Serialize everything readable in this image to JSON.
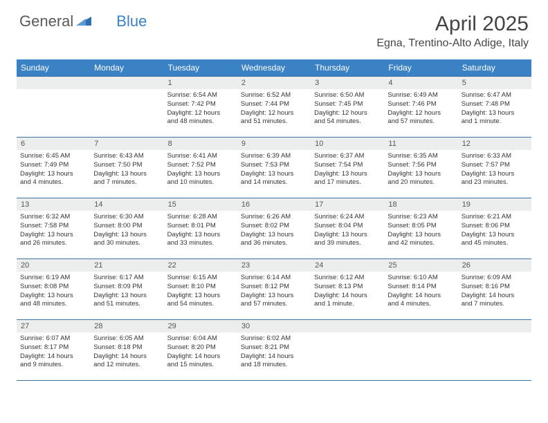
{
  "brand": {
    "name1": "General",
    "name2": "Blue"
  },
  "title": "April 2025",
  "location": "Egna, Trentino-Alto Adige, Italy",
  "colors": {
    "header_bg": "#3b82c4",
    "header_text": "#ffffff",
    "daynum_bg": "#eceded",
    "border": "#3b6fa0",
    "body_text": "#333333",
    "title_text": "#444444"
  },
  "day_headers": [
    "Sunday",
    "Monday",
    "Tuesday",
    "Wednesday",
    "Thursday",
    "Friday",
    "Saturday"
  ],
  "weeks": [
    [
      null,
      null,
      {
        "n": "1",
        "sr": "Sunrise: 6:54 AM",
        "ss": "Sunset: 7:42 PM",
        "d1": "Daylight: 12 hours",
        "d2": "and 48 minutes."
      },
      {
        "n": "2",
        "sr": "Sunrise: 6:52 AM",
        "ss": "Sunset: 7:44 PM",
        "d1": "Daylight: 12 hours",
        "d2": "and 51 minutes."
      },
      {
        "n": "3",
        "sr": "Sunrise: 6:50 AM",
        "ss": "Sunset: 7:45 PM",
        "d1": "Daylight: 12 hours",
        "d2": "and 54 minutes."
      },
      {
        "n": "4",
        "sr": "Sunrise: 6:49 AM",
        "ss": "Sunset: 7:46 PM",
        "d1": "Daylight: 12 hours",
        "d2": "and 57 minutes."
      },
      {
        "n": "5",
        "sr": "Sunrise: 6:47 AM",
        "ss": "Sunset: 7:48 PM",
        "d1": "Daylight: 13 hours",
        "d2": "and 1 minute."
      }
    ],
    [
      {
        "n": "6",
        "sr": "Sunrise: 6:45 AM",
        "ss": "Sunset: 7:49 PM",
        "d1": "Daylight: 13 hours",
        "d2": "and 4 minutes."
      },
      {
        "n": "7",
        "sr": "Sunrise: 6:43 AM",
        "ss": "Sunset: 7:50 PM",
        "d1": "Daylight: 13 hours",
        "d2": "and 7 minutes."
      },
      {
        "n": "8",
        "sr": "Sunrise: 6:41 AM",
        "ss": "Sunset: 7:52 PM",
        "d1": "Daylight: 13 hours",
        "d2": "and 10 minutes."
      },
      {
        "n": "9",
        "sr": "Sunrise: 6:39 AM",
        "ss": "Sunset: 7:53 PM",
        "d1": "Daylight: 13 hours",
        "d2": "and 14 minutes."
      },
      {
        "n": "10",
        "sr": "Sunrise: 6:37 AM",
        "ss": "Sunset: 7:54 PM",
        "d1": "Daylight: 13 hours",
        "d2": "and 17 minutes."
      },
      {
        "n": "11",
        "sr": "Sunrise: 6:35 AM",
        "ss": "Sunset: 7:56 PM",
        "d1": "Daylight: 13 hours",
        "d2": "and 20 minutes."
      },
      {
        "n": "12",
        "sr": "Sunrise: 6:33 AM",
        "ss": "Sunset: 7:57 PM",
        "d1": "Daylight: 13 hours",
        "d2": "and 23 minutes."
      }
    ],
    [
      {
        "n": "13",
        "sr": "Sunrise: 6:32 AM",
        "ss": "Sunset: 7:58 PM",
        "d1": "Daylight: 13 hours",
        "d2": "and 26 minutes."
      },
      {
        "n": "14",
        "sr": "Sunrise: 6:30 AM",
        "ss": "Sunset: 8:00 PM",
        "d1": "Daylight: 13 hours",
        "d2": "and 30 minutes."
      },
      {
        "n": "15",
        "sr": "Sunrise: 6:28 AM",
        "ss": "Sunset: 8:01 PM",
        "d1": "Daylight: 13 hours",
        "d2": "and 33 minutes."
      },
      {
        "n": "16",
        "sr": "Sunrise: 6:26 AM",
        "ss": "Sunset: 8:02 PM",
        "d1": "Daylight: 13 hours",
        "d2": "and 36 minutes."
      },
      {
        "n": "17",
        "sr": "Sunrise: 6:24 AM",
        "ss": "Sunset: 8:04 PM",
        "d1": "Daylight: 13 hours",
        "d2": "and 39 minutes."
      },
      {
        "n": "18",
        "sr": "Sunrise: 6:23 AM",
        "ss": "Sunset: 8:05 PM",
        "d1": "Daylight: 13 hours",
        "d2": "and 42 minutes."
      },
      {
        "n": "19",
        "sr": "Sunrise: 6:21 AM",
        "ss": "Sunset: 8:06 PM",
        "d1": "Daylight: 13 hours",
        "d2": "and 45 minutes."
      }
    ],
    [
      {
        "n": "20",
        "sr": "Sunrise: 6:19 AM",
        "ss": "Sunset: 8:08 PM",
        "d1": "Daylight: 13 hours",
        "d2": "and 48 minutes."
      },
      {
        "n": "21",
        "sr": "Sunrise: 6:17 AM",
        "ss": "Sunset: 8:09 PM",
        "d1": "Daylight: 13 hours",
        "d2": "and 51 minutes."
      },
      {
        "n": "22",
        "sr": "Sunrise: 6:15 AM",
        "ss": "Sunset: 8:10 PM",
        "d1": "Daylight: 13 hours",
        "d2": "and 54 minutes."
      },
      {
        "n": "23",
        "sr": "Sunrise: 6:14 AM",
        "ss": "Sunset: 8:12 PM",
        "d1": "Daylight: 13 hours",
        "d2": "and 57 minutes."
      },
      {
        "n": "24",
        "sr": "Sunrise: 6:12 AM",
        "ss": "Sunset: 8:13 PM",
        "d1": "Daylight: 14 hours",
        "d2": "and 1 minute."
      },
      {
        "n": "25",
        "sr": "Sunrise: 6:10 AM",
        "ss": "Sunset: 8:14 PM",
        "d1": "Daylight: 14 hours",
        "d2": "and 4 minutes."
      },
      {
        "n": "26",
        "sr": "Sunrise: 6:09 AM",
        "ss": "Sunset: 8:16 PM",
        "d1": "Daylight: 14 hours",
        "d2": "and 7 minutes."
      }
    ],
    [
      {
        "n": "27",
        "sr": "Sunrise: 6:07 AM",
        "ss": "Sunset: 8:17 PM",
        "d1": "Daylight: 14 hours",
        "d2": "and 9 minutes."
      },
      {
        "n": "28",
        "sr": "Sunrise: 6:05 AM",
        "ss": "Sunset: 8:18 PM",
        "d1": "Daylight: 14 hours",
        "d2": "and 12 minutes."
      },
      {
        "n": "29",
        "sr": "Sunrise: 6:04 AM",
        "ss": "Sunset: 8:20 PM",
        "d1": "Daylight: 14 hours",
        "d2": "and 15 minutes."
      },
      {
        "n": "30",
        "sr": "Sunrise: 6:02 AM",
        "ss": "Sunset: 8:21 PM",
        "d1": "Daylight: 14 hours",
        "d2": "and 18 minutes."
      },
      null,
      null,
      null
    ]
  ]
}
